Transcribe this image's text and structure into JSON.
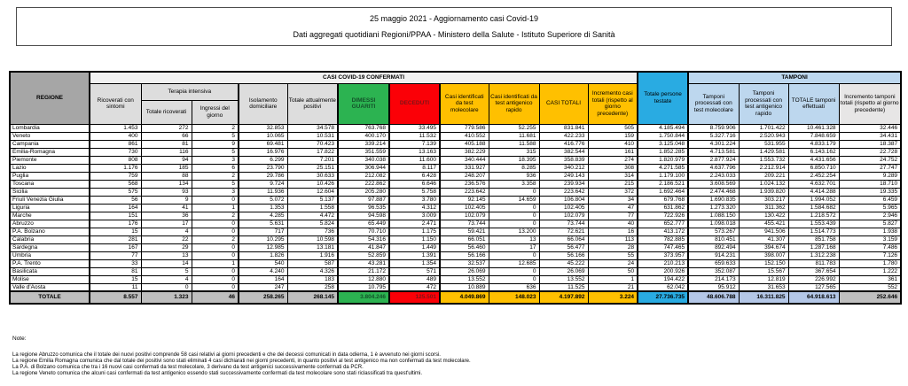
{
  "header": {
    "line1": "25 maggio 2021 - Aggiornamento casi Covid-19",
    "line2": "Dati aggregati quotidiani Regioni/PPAA - Ministero della Salute - Istituto Superiore di Sanità"
  },
  "table": {
    "region_header": "REGIONE",
    "group_casi": "CASI COVID-19 CONFERMATI",
    "group_tamponi": "TAMPONI",
    "subgroup_terapia": "Terapia intensiva",
    "columns": [
      "Ricoverati con sintomi",
      "Totale ricoverati",
      "Ingressi del giorno",
      "Isolamento domiciliare",
      "Totale attualmente positivi",
      "DIMESSI GUARITI",
      "DECEDUTI",
      "Casi identificati da test molecolare",
      "Casi identificati da test antigenico rapido",
      "CASI TOTALI",
      "Incremento casi totali (rispetto al giorno precedente)",
      "Totale persone testate",
      "Tamponi processati con test molecolare",
      "Tamponi processati con test antigenico rapido",
      "TOTALE tamponi effettuati",
      "Incremento tamponi totali (rispetto al giorno precedente)"
    ],
    "rows": [
      {
        "region": "Lombardia",
        "values": [
          "1.453",
          "272",
          "2",
          "32.853",
          "34.578",
          "763.768",
          "33.495",
          "779.586",
          "52.255",
          "831.841",
          "505",
          "4.185.494",
          "8.759.906",
          "1.701.422",
          "10.461.328",
          "32.446"
        ]
      },
      {
        "region": "Veneto",
        "values": [
          "400",
          "66",
          "5",
          "10.065",
          "10.531",
          "400.170",
          "11.532",
          "410.552",
          "11.681",
          "422.233",
          "159",
          "1.750.844",
          "5.327.716",
          "2.520.943",
          "7.848.659",
          "34.431"
        ]
      },
      {
        "region": "Campania",
        "values": [
          "861",
          "81",
          "9",
          "69.481",
          "70.423",
          "339.214",
          "7.139",
          "405.188",
          "11.588",
          "416.776",
          "410",
          "3.125.048",
          "4.301.224",
          "531.955",
          "4.833.179",
          "18.387"
        ]
      },
      {
        "region": "Emilia-Romagna",
        "values": [
          "730",
          "116",
          "5",
          "16.976",
          "17.822",
          "351.559",
          "13.163",
          "382.229",
          "315",
          "382.544",
          "161",
          "1.852.285",
          "4.713.581",
          "1.429.581",
          "6.143.162",
          "22.728"
        ]
      },
      {
        "region": "Piemonte",
        "values": [
          "808",
          "94",
          "3",
          "6.299",
          "7.201",
          "340.038",
          "11.600",
          "340.444",
          "18.395",
          "358.839",
          "274",
          "1.820.979",
          "2.877.924",
          "1.553.732",
          "4.431.656",
          "24.752"
        ]
      },
      {
        "region": "Lazio",
        "values": [
          "1.176",
          "185",
          "6",
          "23.790",
          "25.151",
          "306.944",
          "8.117",
          "331.927",
          "8.285",
          "340.212",
          "308",
          "4.271.585",
          "4.637.796",
          "2.212.914",
          "6.850.710",
          "27.747"
        ]
      },
      {
        "region": "Puglia",
        "values": [
          "759",
          "88",
          "2",
          "29.786",
          "30.633",
          "212.082",
          "6.428",
          "248.207",
          "936",
          "249.143",
          "314",
          "1.179.100",
          "2.243.033",
          "209.221",
          "2.452.254",
          "9.289"
        ]
      },
      {
        "region": "Toscana",
        "values": [
          "568",
          "134",
          "5",
          "9.724",
          "10.426",
          "222.862",
          "6.646",
          "236.576",
          "3.358",
          "239.934",
          "215",
          "2.186.521",
          "3.608.569",
          "1.024.132",
          "4.632.701",
          "18.710"
        ]
      },
      {
        "region": "Sicilia",
        "values": [
          "575",
          "93",
          "3",
          "11.936",
          "12.604",
          "205.280",
          "5.758",
          "223.642",
          "0",
          "223.642",
          "372",
          "1.692.464",
          "2.474.468",
          "1.939.820",
          "4.414.288",
          "19.335"
        ]
      },
      {
        "region": "Friuli Venezia Giulia",
        "values": [
          "56",
          "9",
          "0",
          "5.072",
          "5.137",
          "97.887",
          "3.780",
          "92.145",
          "14.659",
          "106.804",
          "34",
          "679.768",
          "1.690.835",
          "303.217",
          "1.994.052",
          "6.459"
        ]
      },
      {
        "region": "Liguria",
        "values": [
          "164",
          "41",
          "1",
          "1.353",
          "1.558",
          "96.535",
          "4.312",
          "102.405",
          "0",
          "102.405",
          "47",
          "631.862",
          "1.273.320",
          "311.362",
          "1.584.682",
          "5.965"
        ]
      },
      {
        "region": "Marche",
        "values": [
          "151",
          "36",
          "2",
          "4.285",
          "4.472",
          "94.598",
          "3.009",
          "102.079",
          "0",
          "102.079",
          "77",
          "722.926",
          "1.088.150",
          "130.422",
          "1.218.572",
          "2.946"
        ]
      },
      {
        "region": "Abruzzo",
        "values": [
          "176",
          "17",
          "0",
          "5.631",
          "5.824",
          "65.449",
          "2.471",
          "73.744",
          "0",
          "73.744",
          "40",
          "652.777",
          "1.098.018",
          "455.421",
          "1.553.439",
          "5.827"
        ]
      },
      {
        "region": "P.A. Bolzano",
        "values": [
          "15",
          "4",
          "0",
          "717",
          "736",
          "70.710",
          "1.175",
          "59.421",
          "13.200",
          "72.621",
          "16",
          "413.172",
          "573.267",
          "941.506",
          "1.514.773",
          "1.938"
        ]
      },
      {
        "region": "Calabria",
        "values": [
          "281",
          "22",
          "2",
          "10.295",
          "10.598",
          "54.316",
          "1.150",
          "66.051",
          "13",
          "66.064",
          "113",
          "782.885",
          "810.451",
          "41.307",
          "851.758",
          "3.159"
        ]
      },
      {
        "region": "Sardegna",
        "values": [
          "167",
          "29",
          "0",
          "12.985",
          "13.181",
          "41.847",
          "1.449",
          "56.460",
          "17",
          "56.477",
          "28",
          "747.465",
          "892.494",
          "394.674",
          "1.287.168",
          "7.486"
        ]
      },
      {
        "region": "Umbria",
        "values": [
          "77",
          "13",
          "0",
          "1.826",
          "1.916",
          "52.859",
          "1.391",
          "56.166",
          "0",
          "56.166",
          "55",
          "373.957",
          "914.231",
          "398.007",
          "1.312.238",
          "7.126"
        ]
      },
      {
        "region": "P.A. Trento",
        "values": [
          "33",
          "14",
          "1",
          "540",
          "587",
          "43.281",
          "1.354",
          "32.537",
          "12.685",
          "45.222",
          "24",
          "210.213",
          "659.633",
          "152.150",
          "811.783",
          "1.780"
        ]
      },
      {
        "region": "Basilicata",
        "values": [
          "81",
          "5",
          "0",
          "4.240",
          "4.326",
          "21.172",
          "571",
          "26.069",
          "0",
          "26.069",
          "50",
          "200.926",
          "352.087",
          "15.567",
          "367.654",
          "1.222"
        ]
      },
      {
        "region": "Molise",
        "values": [
          "15",
          "4",
          "0",
          "164",
          "183",
          "12.880",
          "489",
          "13.552",
          "0",
          "13.552",
          "1",
          "194.422",
          "214.173",
          "12.819",
          "226.992",
          "361"
        ]
      },
      {
        "region": "Valle d'Aosta",
        "values": [
          "11",
          "0",
          "0",
          "247",
          "258",
          "10.795",
          "472",
          "10.889",
          "636",
          "11.525",
          "21",
          "62.042",
          "95.912",
          "31.653",
          "127.565",
          "552"
        ]
      }
    ],
    "total": {
      "label": "TOTALE",
      "values": [
        "8.557",
        "1.323",
        "46",
        "258.265",
        "268.145",
        "3.804.246",
        "125.501",
        "4.049.869",
        "148.023",
        "4.197.892",
        "3.224",
        "27.736.735",
        "48.606.788",
        "16.311.825",
        "64.918.613",
        "252.646"
      ]
    }
  },
  "notes": {
    "label": "Note:",
    "lines": [
      "La regione Abruzzo comunica che il totale dei nuovi positivi comprende 58 casi relativi ai giorni precedenti e che dei decessi comunicati in data odierna, 1 è avvenuto nei giorni scorsi.",
      "La regione Emilia Romagna comunica che dal totale dei positivi sono stati eliminati 4 casi dichiarati nei giorni precedenti, in quanto positivi al test antigenico ma non confermati da test molecolare.",
      "La P.A. di Bolzano comunica che tra i 16 nuovi casi confermati da test molecolare, 3 derivano da test antigenici successivamente confermati da PCR.",
      "La regione Veneto comunica che alcuni casi confermati da test antigenico essendo stati successivamente confermati da test molecolare sono stati riclassificati tra quest'ultimi."
    ]
  },
  "colors": {
    "hdr_gray": "#a6a6a6",
    "band": "#f1f1f1",
    "subhead": "#dddddd",
    "green": "#2cb351",
    "green_text": "#14522a",
    "red": "#fb0007",
    "red_text": "#7f1416",
    "orange": "#ffc000",
    "cyan": "#29abe2",
    "light_blue": "#bdd7ee",
    "last_gray": "#e7e6e6",
    "total_gray": "#bfbfbf",
    "total_blue": "#b4c7e7"
  }
}
